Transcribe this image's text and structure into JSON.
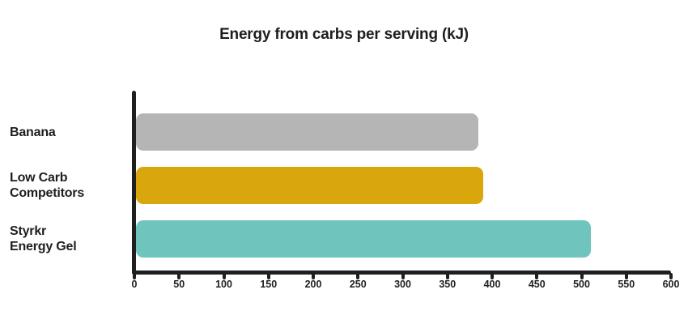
{
  "title": "Energy from carbs per serving (kJ)",
  "chart_data": {
    "type": "bar",
    "orientation": "horizontal",
    "title": "Energy from carbs per serving (kJ)",
    "categories": [
      "Banana",
      "Low Carb Competitors",
      "Styrkr Energy Gel"
    ],
    "categories_display": [
      [
        "Banana"
      ],
      [
        "Low Carb",
        "Competitors"
      ],
      [
        "Styrkr",
        "Energy Gel"
      ]
    ],
    "values": [
      385,
      390,
      510
    ],
    "unit": "kJ",
    "xlim": [
      0,
      600
    ],
    "x_ticks": [
      0,
      50,
      100,
      150,
      200,
      250,
      300,
      350,
      400,
      450,
      500,
      550,
      600
    ],
    "bar_colors": [
      "#b5b5b5",
      "#d9a70b",
      "#6fc5be"
    ],
    "grid": false,
    "legend": false
  },
  "colors": {
    "background": "#ffffff",
    "axis": "#1f1f1f",
    "text": "#1e1e1e",
    "bar_banana": "#b5b5b5",
    "bar_low_carb": "#d9a70b",
    "bar_energy_gel": "#6fc5be"
  }
}
